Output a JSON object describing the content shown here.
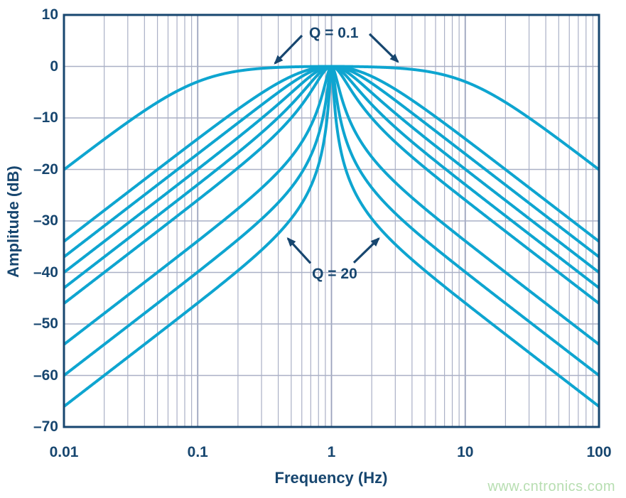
{
  "chart_data": {
    "type": "line",
    "title": "",
    "xlabel": "Frequency (Hz)",
    "ylabel": "Amplitude (dB)",
    "xscale": "log",
    "xlim": [
      0.01,
      100
    ],
    "ylim": [
      -70,
      10
    ],
    "grid": true,
    "formula": "amplitude_db = -10*log10(1 + Q^2 * (f/f0 - f0/f)^2), f0 = 1 Hz, peak 0 dB at 1 Hz",
    "series": [
      {
        "q": 0.1
      },
      {
        "q": 0.5
      },
      {
        "q": 0.707
      },
      {
        "q": 1
      },
      {
        "q": 1.414
      },
      {
        "q": 2
      },
      {
        "q": 5
      },
      {
        "q": 10
      },
      {
        "q": 20
      }
    ],
    "x_ticks": [
      {
        "value": 0.01,
        "label": "0.01"
      },
      {
        "value": 0.1,
        "label": "0.1"
      },
      {
        "value": 1,
        "label": "1"
      },
      {
        "value": 10,
        "label": "10"
      },
      {
        "value": 100,
        "label": "100"
      }
    ],
    "y_ticks": [
      {
        "value": 10,
        "label": "10"
      },
      {
        "value": 0,
        "label": "0"
      },
      {
        "value": -10,
        "label": "–10"
      },
      {
        "value": -20,
        "label": "–20"
      },
      {
        "value": -30,
        "label": "–30"
      },
      {
        "value": -40,
        "label": "–40"
      },
      {
        "value": -50,
        "label": "–50"
      },
      {
        "value": -60,
        "label": "–60"
      },
      {
        "value": -70,
        "label": "–70"
      }
    ],
    "annotations": [
      {
        "label": "Q = 0.1",
        "f": 1.04,
        "db": 6.4,
        "arrows": [
          {
            "from": [
              0.602,
              6.0
            ],
            "to": [
              0.378,
              0.6
            ]
          },
          {
            "from": [
              1.925,
              6.3
            ],
            "to": [
              3.14,
              0.9
            ]
          }
        ]
      },
      {
        "label": "Q = 20",
        "f": 1.056,
        "db": -40.3,
        "arrows": [
          {
            "from": [
              0.697,
              -38.2
            ],
            "to": [
              0.472,
              -33.4
            ]
          },
          {
            "from": [
              1.47,
              -38.1
            ],
            "to": [
              2.26,
              -33.4
            ]
          }
        ]
      }
    ],
    "colors": {
      "curve": "#0EA5D0",
      "axis": "#17466F",
      "grid_minor": "#AAB0C6",
      "grid_major": "#9BA3BD",
      "background": "#FFFFFF"
    }
  },
  "watermark": {
    "text": "www.cntronics.com",
    "color": "#B7DEB1"
  }
}
